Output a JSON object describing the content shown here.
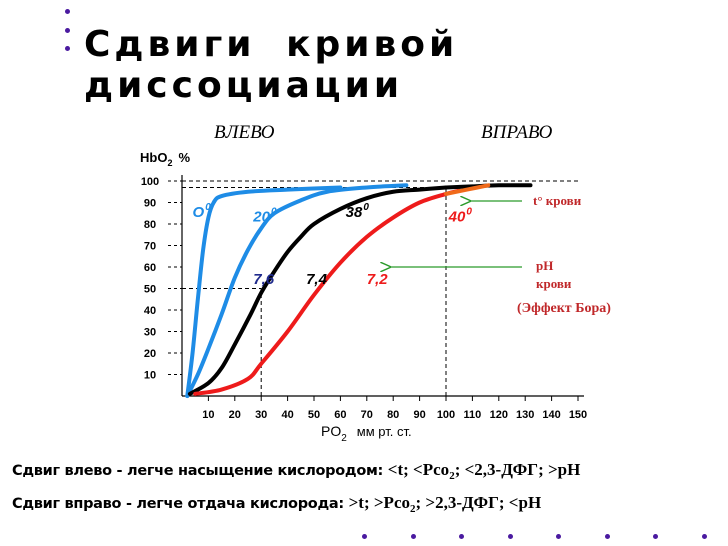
{
  "slide": {
    "title": "Сдвиги  кривой  диссоциации",
    "left_label": "ВЛЕВО",
    "right_label": "ВПРАВО",
    "bottom_line1_sans": "Сдвиг влево - легче  насыщение  кислородом: ",
    "bottom_line1_serif": "<t; <Pco",
    "bottom_line1_rest": "; <2,3-ДФГ; >pH",
    "bottom_line2_sans": "Сдвиг вправо - легче  отдача  кислорода: ",
    "bottom_line2_serif": ">t; >Pco",
    "bottom_line2_rest": "; >2,3-ДФГ; <pH",
    "sub_2": "2"
  },
  "chart_data": {
    "type": "line",
    "xlabel": "PO",
    "xlabel_sub": "2",
    "xlabel_unit": "мм рт. ст.",
    "ylabel": "HbO",
    "ylabel_sub": "2",
    "ylabel_unit": "%",
    "xlim": [
      0,
      150
    ],
    "ylim": [
      0,
      100
    ],
    "x_ticks": [
      10,
      20,
      30,
      40,
      50,
      60,
      70,
      80,
      90,
      100,
      110,
      120,
      130,
      140,
      150
    ],
    "y_ticks": [
      10,
      20,
      30,
      40,
      50,
      60,
      70,
      80,
      90,
      100
    ],
    "colors": {
      "blue": "#1e8ce6",
      "black": "#000000",
      "red": "#ee1b1b",
      "orange": "#f06a1a",
      "green": "#2a9a2a",
      "darkred": "#c0282a",
      "darkblue": "#1f2a8c"
    },
    "series": [
      {
        "color": "#1e8ce6",
        "values": [
          [
            2,
            0
          ],
          [
            4,
            20
          ],
          [
            6,
            45
          ],
          [
            8,
            68
          ],
          [
            10,
            83
          ],
          [
            12,
            90
          ],
          [
            15,
            93
          ],
          [
            25,
            95
          ],
          [
            40,
            96
          ],
          [
            60,
            97
          ]
        ]
      },
      {
        "color": "#1e8ce6",
        "values": [
          [
            2,
            0
          ],
          [
            6,
            10
          ],
          [
            10,
            22
          ],
          [
            15,
            38
          ],
          [
            20,
            55
          ],
          [
            25,
            68
          ],
          [
            30,
            78
          ],
          [
            35,
            85
          ],
          [
            45,
            91
          ],
          [
            55,
            95
          ],
          [
            70,
            97
          ],
          [
            85,
            98
          ]
        ]
      },
      {
        "color": "#000000",
        "values": [
          [
            3,
            1
          ],
          [
            10,
            6
          ],
          [
            15,
            13
          ],
          [
            20,
            24
          ],
          [
            26,
            38
          ],
          [
            30,
            48
          ],
          [
            35,
            58
          ],
          [
            40,
            67
          ],
          [
            45,
            74
          ],
          [
            50,
            80
          ],
          [
            60,
            87
          ],
          [
            70,
            92
          ],
          [
            80,
            95
          ],
          [
            90,
            96
          ],
          [
            100,
            97
          ]
        ]
      },
      {
        "color": "#ee1b1b",
        "values": [
          [
            5,
            1
          ],
          [
            15,
            3
          ],
          [
            25,
            8
          ],
          [
            30,
            15
          ],
          [
            40,
            30
          ],
          [
            50,
            47
          ],
          [
            60,
            62
          ],
          [
            70,
            74
          ],
          [
            80,
            83
          ],
          [
            90,
            90
          ],
          [
            100,
            94
          ],
          [
            105,
            95.5
          ]
        ]
      },
      {
        "color": "#000000",
        "values": [
          [
            100,
            97
          ],
          [
            110,
            97.5
          ],
          [
            120,
            98
          ],
          [
            132,
            98
          ]
        ]
      },
      {
        "color": "#f06a1a",
        "values": [
          [
            100,
            94
          ],
          [
            108,
            96
          ],
          [
            116,
            98
          ]
        ]
      }
    ],
    "reference_lines": [
      {
        "type": "h",
        "y": 100,
        "to_x": 150
      },
      {
        "type": "h",
        "y": 97,
        "to_x": 100
      },
      {
        "type": "h",
        "y": 50,
        "to_x": 30
      },
      {
        "type": "v",
        "x": 30,
        "to_y": 50
      },
      {
        "type": "v",
        "x": 100,
        "to_y": 97
      }
    ],
    "annotations": [
      {
        "text": "O",
        "sup": "0",
        "x": 4,
        "y": 86,
        "color": "#1e8ce6"
      },
      {
        "text": "20",
        "sup": "0",
        "x": 27,
        "y": 84,
        "color": "#1e8ce6"
      },
      {
        "text": "38",
        "sup": "0",
        "x": 62,
        "y": 86,
        "color": "#000000"
      },
      {
        "text": "40",
        "sup": "0",
        "x": 101,
        "y": 84,
        "color": "#ee1b1b"
      },
      {
        "text": "7,6",
        "x": 27,
        "y": 55,
        "color": "#1f2a8c"
      },
      {
        "text": "7,4",
        "x": 47,
        "y": 55,
        "color": "#000000"
      },
      {
        "text": "7,2",
        "x": 70,
        "y": 55,
        "color": "#ee1b1b"
      }
    ],
    "arrow_labels": [
      {
        "text": "t° крови"
      },
      {
        "text": "pH"
      },
      {
        "text": "крови"
      },
      {
        "text": "(Эффект Бора)"
      }
    ]
  }
}
